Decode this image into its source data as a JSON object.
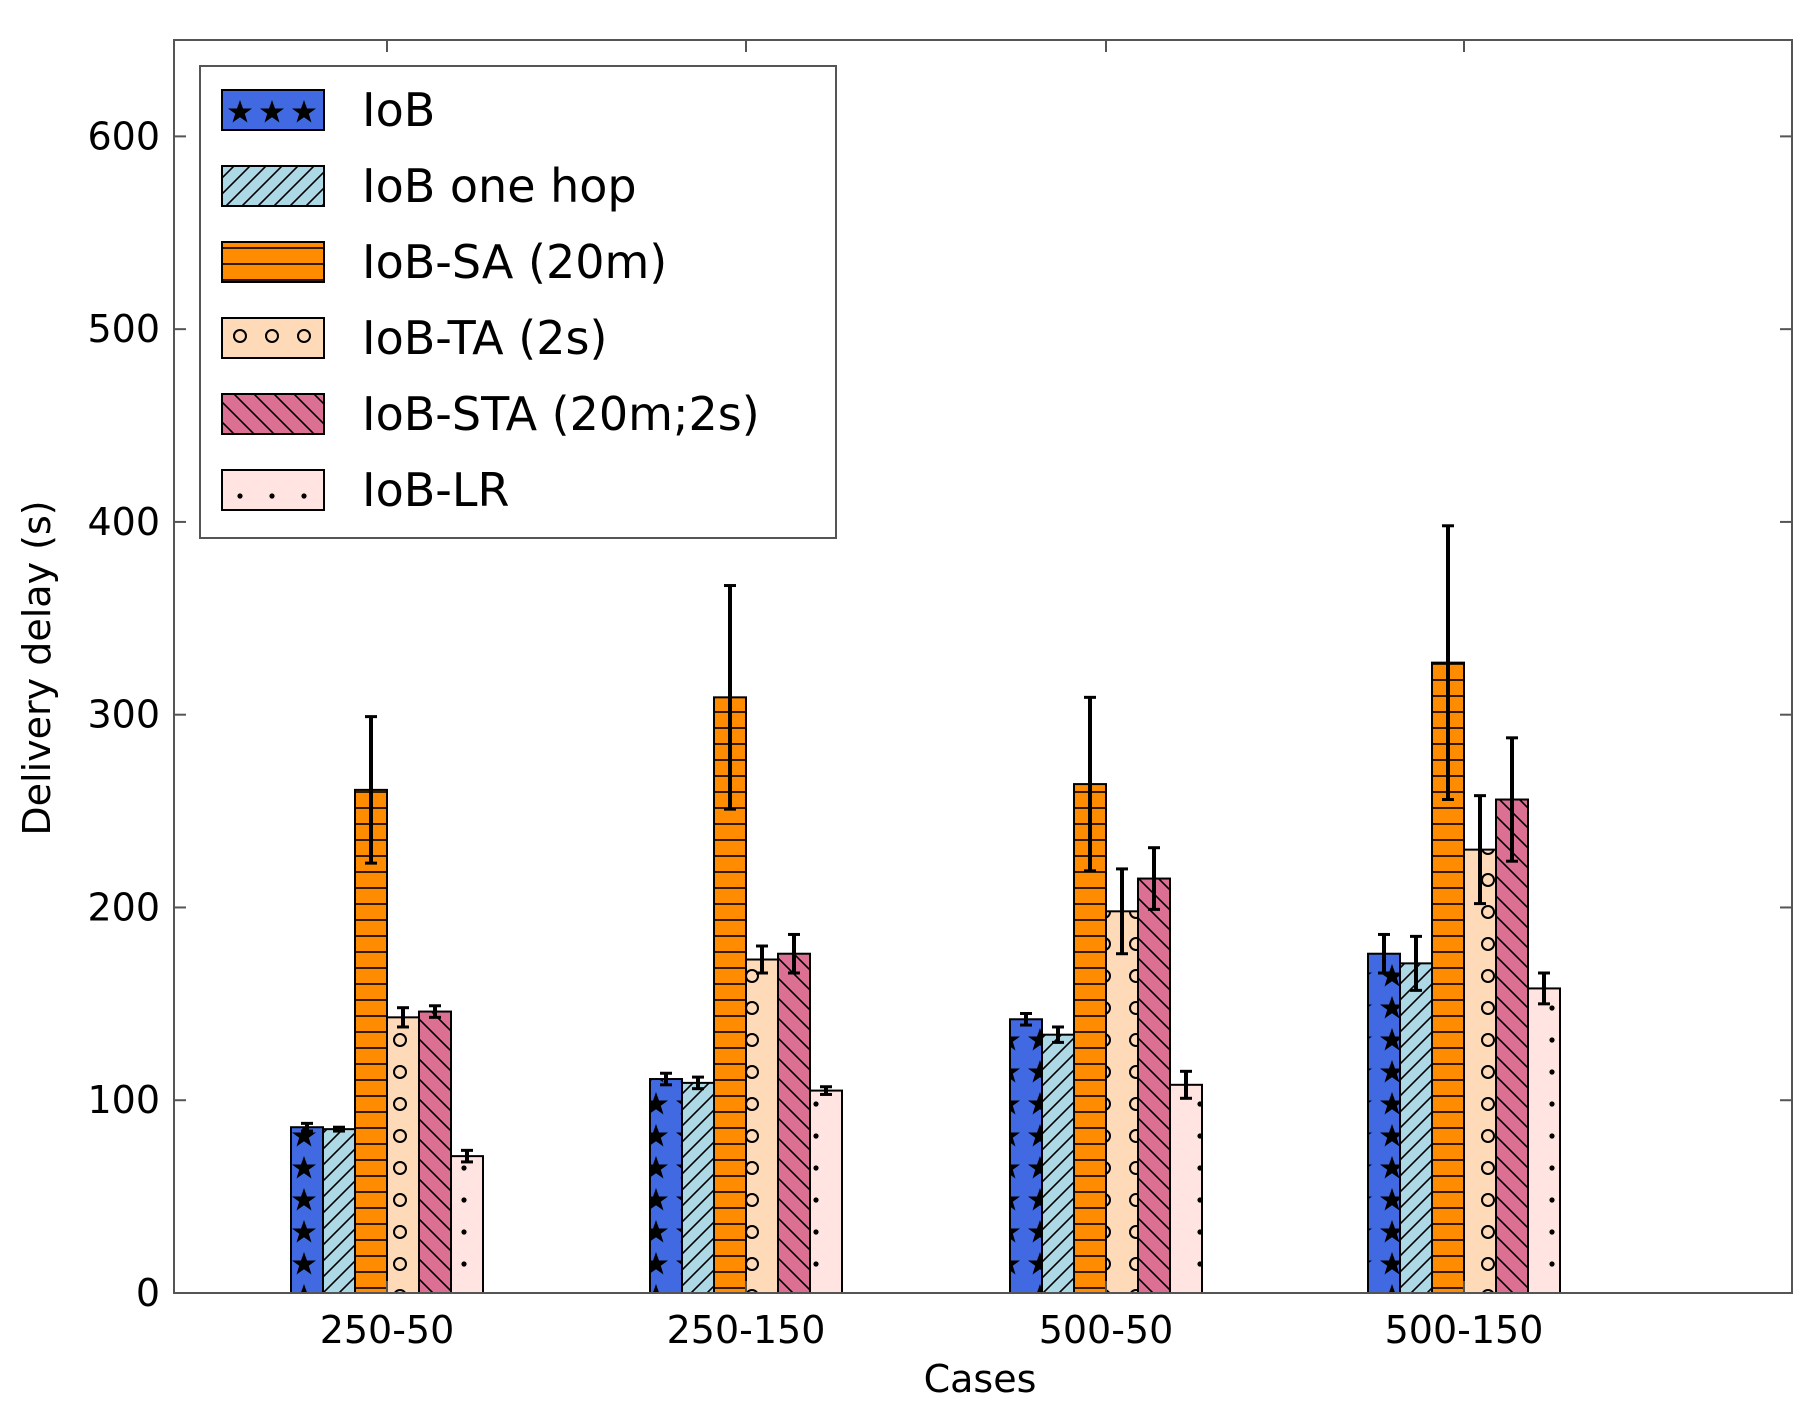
{
  "chart_data": {
    "type": "bar",
    "xlabel": "Cases",
    "ylabel": "Delivery delay (s)",
    "ylim": [
      0,
      650
    ],
    "yticks": [
      0,
      100,
      200,
      300,
      400,
      500,
      600
    ],
    "categories": [
      "250-50",
      "250-150",
      "500-50",
      "500-150"
    ],
    "legend_position": "top-left",
    "series": [
      {
        "name": "IoB",
        "color": "#4169e1",
        "hatch": "stars",
        "values": [
          86,
          111,
          142,
          176
        ],
        "errors": [
          2,
          3,
          3,
          10
        ]
      },
      {
        "name": "IoB one hop",
        "color": "#add8e6",
        "hatch": "diagonal",
        "values": [
          85,
          109,
          134,
          171
        ],
        "errors": [
          1,
          3,
          4,
          14
        ]
      },
      {
        "name": "IoB-SA (20m)",
        "color": "#ff8c00",
        "hatch": "horizontal",
        "values": [
          261,
          309,
          264,
          327
        ],
        "errors": [
          38,
          58,
          45,
          71
        ]
      },
      {
        "name": "IoB-TA (2s)",
        "color": "#ffdab9",
        "hatch": "circles",
        "values": [
          143,
          173,
          198,
          230
        ],
        "errors": [
          5,
          7,
          22,
          28
        ]
      },
      {
        "name": "IoB-STA (20m;2s)",
        "color": "#db7093",
        "hatch": "backdiagonal",
        "values": [
          146,
          176,
          215,
          256
        ],
        "errors": [
          3,
          10,
          16,
          32
        ]
      },
      {
        "name": "IoB-LR",
        "color": "#ffe4e1",
        "hatch": "dots",
        "values": [
          71,
          105,
          108,
          158
        ],
        "errors": [
          3,
          2,
          7,
          8
        ]
      }
    ]
  }
}
